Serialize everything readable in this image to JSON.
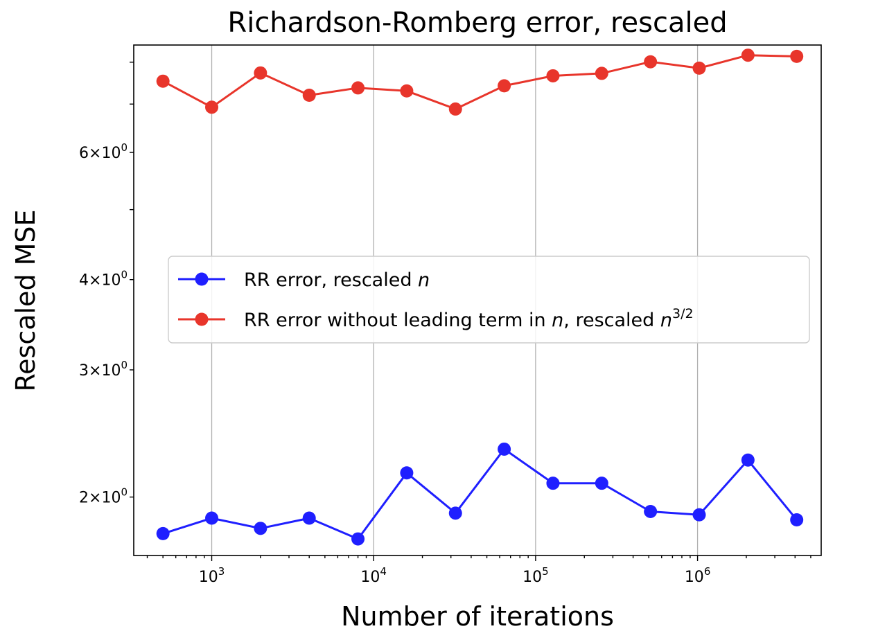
{
  "chart_data": {
    "type": "line",
    "title": "Richardson-Romberg error, rescaled",
    "xlabel": "Number of iterations",
    "ylabel": "Rescaled MSE",
    "xscale": "log",
    "yscale": "log",
    "xlim": [
      330,
      5800000
    ],
    "ylim": [
      1.66,
      8.45
    ],
    "grid": "x-major",
    "legend_position": "center-right",
    "x": [
      500,
      1000,
      2000,
      4000,
      8000,
      16000,
      32000,
      64000,
      128000,
      256000,
      512000,
      1024000,
      2048000,
      4096000
    ],
    "x_ticks": [
      {
        "value": 1000,
        "base": "10",
        "exp": "3"
      },
      {
        "value": 10000,
        "base": "10",
        "exp": "4"
      },
      {
        "value": 100000,
        "base": "10",
        "exp": "5"
      },
      {
        "value": 1000000,
        "base": "10",
        "exp": "6"
      }
    ],
    "y_ticks": [
      {
        "value": 2,
        "base": "2×10",
        "exp": "0"
      },
      {
        "value": 3,
        "base": "3×10",
        "exp": "0"
      },
      {
        "value": 4,
        "base": "4×10",
        "exp": "0"
      },
      {
        "value": 6,
        "base": "6×10",
        "exp": "0"
      }
    ],
    "series": [
      {
        "name": "RR error, rescaled n",
        "legend_text": "RR error, rescaled ",
        "legend_italic": "n",
        "legend_after": "",
        "legend_sup": "",
        "color": "#1f1fff",
        "values": [
          1.78,
          1.87,
          1.81,
          1.87,
          1.75,
          2.16,
          1.9,
          2.33,
          2.09,
          2.09,
          1.91,
          1.89,
          2.25,
          1.86
        ]
      },
      {
        "name": "RR error without leading term in n, rescaled n^{3/2}",
        "legend_text": "RR error without leading term in ",
        "legend_italic": "n",
        "legend_after": ", rescaled ",
        "legend_sup": "3/2",
        "color": "#e8352b",
        "values": [
          7.53,
          6.93,
          7.73,
          7.2,
          7.37,
          7.3,
          6.89,
          7.42,
          7.66,
          7.72,
          8.01,
          7.85,
          8.18,
          8.15
        ]
      }
    ]
  }
}
